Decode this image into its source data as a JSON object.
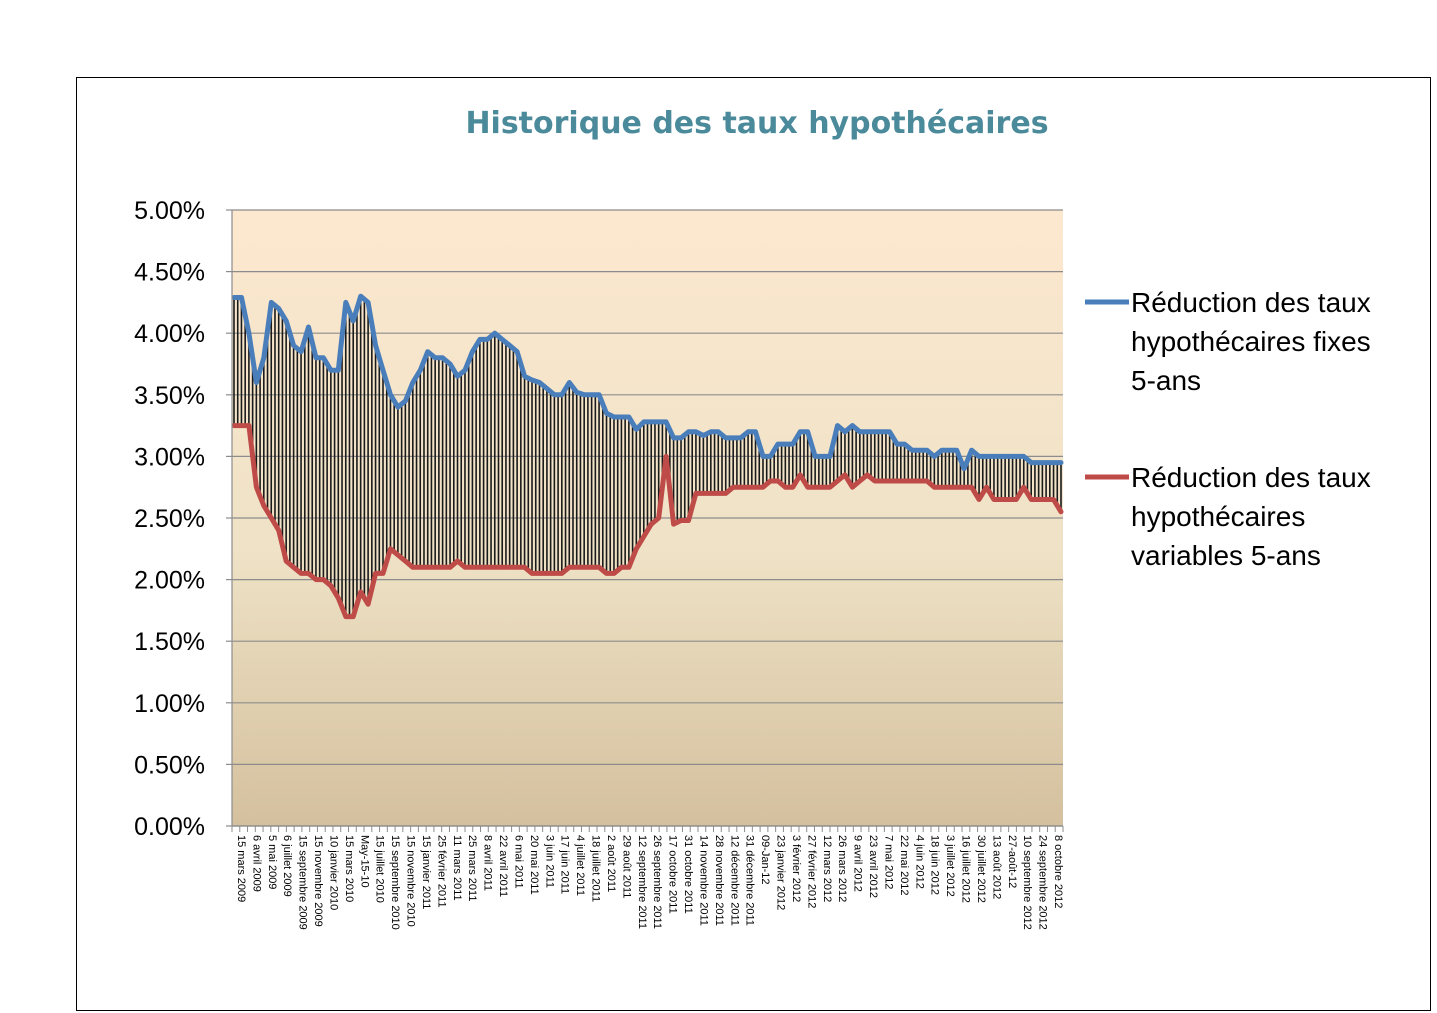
{
  "chart_data": {
    "type": "line",
    "title": "Historique des taux hypothécaires",
    "xlabel": "",
    "ylabel": "",
    "ylim": [
      0,
      0.05
    ],
    "yticks": [
      "0.00%",
      "0.50%",
      "1.00%",
      "1.50%",
      "2.00%",
      "2.50%",
      "3.00%",
      "3.50%",
      "4.00%",
      "4.50%",
      "5.00%"
    ],
    "grid": true,
    "legend_position": "right",
    "fill_between_series": "vertical hatch lines",
    "background": "vertical gradient from light peach (top) to tan (bottom)",
    "x_tick_labels": [
      "15 mars 2009",
      "6 avril 2009",
      "5 mai 2009",
      "6 juillet 2009",
      "15 septembre 2009",
      "15 novembre 2009",
      "10 janvier 2010",
      "15 mars 2010",
      "May-15-10",
      "15 juillet 2010",
      "15 septembre 2010",
      "15 novembre 2010",
      "15 janvier 2011",
      "25 février 2011",
      "11 mars 2011",
      "25 mars 2011",
      "8 avril 2011",
      "22 avril 2011",
      "6 mai 2011",
      "20 mai 2011",
      "3 juin 2011",
      "17 juin 2011",
      "4 juillet 2011",
      "18 juillet 2011",
      "2 août 2011",
      "29 août 2011",
      "12 septembre 2011",
      "26 septembre 2011",
      "17 octobre 2011",
      "31 octobre 2011",
      "14 novembre 2011",
      "28 novembre 2011",
      "12 décembre 2011",
      "31 décembre 2011",
      "09-Jan-12",
      "23 janvier 2012",
      "3 février 2012",
      "27 février 2012",
      "12 mars 2012",
      "26 mars 2012",
      "9 avril 2012",
      "23 avril 2012",
      "7 mai 2012",
      "22 mai 2012",
      "4 juin 2012",
      "18 juin 2012",
      "3 juillet 2012",
      "16 juillet 2012",
      "30 juillet 2012",
      "13 août 2012",
      "27-août-12",
      "10 septembre 2012",
      "24 septembre 2012",
      "8 octobre 2012"
    ],
    "series": [
      {
        "name": "Réduction des taux hypothécaires fixes 5-ans",
        "color": "#4a7ebb",
        "values": [
          0.0429,
          0.0429,
          0.04,
          0.036,
          0.038,
          0.0425,
          0.042,
          0.041,
          0.039,
          0.0385,
          0.0405,
          0.038,
          0.038,
          0.037,
          0.037,
          0.0425,
          0.041,
          0.043,
          0.0425,
          0.039,
          0.037,
          0.035,
          0.034,
          0.0345,
          0.036,
          0.037,
          0.0385,
          0.038,
          0.038,
          0.0375,
          0.0365,
          0.037,
          0.0385,
          0.0395,
          0.0395,
          0.04,
          0.0395,
          0.039,
          0.0385,
          0.0365,
          0.0362,
          0.036,
          0.0355,
          0.035,
          0.035,
          0.036,
          0.0352,
          0.035,
          0.035,
          0.035,
          0.0335,
          0.0332,
          0.0332,
          0.0332,
          0.0322,
          0.0328,
          0.0328,
          0.0328,
          0.0328,
          0.0315,
          0.0315,
          0.032,
          0.032,
          0.0317,
          0.032,
          0.032,
          0.0315,
          0.0315,
          0.0315,
          0.032,
          0.032,
          0.03,
          0.03,
          0.031,
          0.031,
          0.031,
          0.032,
          0.032,
          0.03,
          0.03,
          0.03,
          0.0325,
          0.032,
          0.0325,
          0.032,
          0.032,
          0.032,
          0.032,
          0.032,
          0.031,
          0.031,
          0.0305,
          0.0305,
          0.0305,
          0.03,
          0.0305,
          0.0305,
          0.0305,
          0.029,
          0.0305,
          0.03,
          0.03,
          0.03,
          0.03,
          0.03,
          0.03,
          0.03,
          0.0295,
          0.0295,
          0.0295,
          0.0295,
          0.0295
        ]
      },
      {
        "name": "Réduction des taux hypothécaires variables 5-ans",
        "color": "#be4b48",
        "values": [
          0.0325,
          0.0325,
          0.0325,
          0.0275,
          0.026,
          0.025,
          0.024,
          0.0215,
          0.021,
          0.0205,
          0.0205,
          0.02,
          0.02,
          0.0195,
          0.0185,
          0.017,
          0.017,
          0.019,
          0.018,
          0.0205,
          0.0205,
          0.0225,
          0.022,
          0.0215,
          0.021,
          0.021,
          0.021,
          0.021,
          0.021,
          0.021,
          0.0215,
          0.021,
          0.021,
          0.021,
          0.021,
          0.021,
          0.021,
          0.021,
          0.021,
          0.021,
          0.0205,
          0.0205,
          0.0205,
          0.0205,
          0.0205,
          0.021,
          0.021,
          0.021,
          0.021,
          0.021,
          0.0205,
          0.0205,
          0.021,
          0.021,
          0.0225,
          0.0235,
          0.0245,
          0.025,
          0.03,
          0.0245,
          0.0248,
          0.0248,
          0.027,
          0.027,
          0.027,
          0.027,
          0.027,
          0.0275,
          0.0275,
          0.0275,
          0.0275,
          0.0275,
          0.028,
          0.028,
          0.0275,
          0.0275,
          0.0285,
          0.0275,
          0.0275,
          0.0275,
          0.0275,
          0.028,
          0.0285,
          0.0275,
          0.028,
          0.0285,
          0.028,
          0.028,
          0.028,
          0.028,
          0.028,
          0.028,
          0.028,
          0.028,
          0.0275,
          0.0275,
          0.0275,
          0.0275,
          0.0275,
          0.0275,
          0.0265,
          0.0275,
          0.0265,
          0.0265,
          0.0265,
          0.0265,
          0.0275,
          0.0265,
          0.0265,
          0.0265,
          0.0265,
          0.0255
        ]
      }
    ]
  }
}
